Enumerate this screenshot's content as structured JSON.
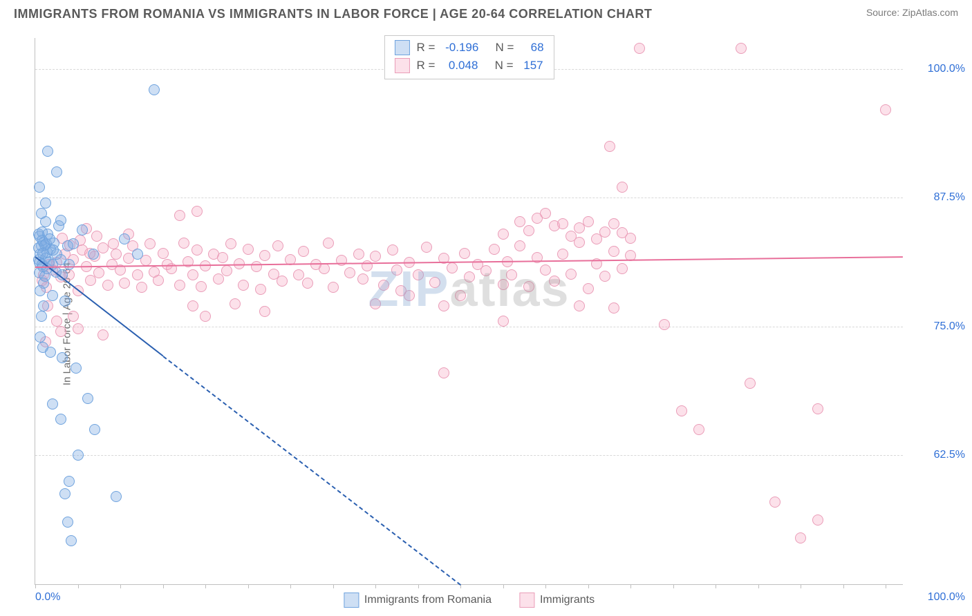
{
  "title": "IMMIGRANTS FROM ROMANIA VS IMMIGRANTS IN LABOR FORCE | AGE 20-64 CORRELATION CHART",
  "source_prefix": "Source: ",
  "source_name": "ZipAtlas.com",
  "ylabel": "In Labor Force | Age 20-64",
  "watermark_a": "ZIP",
  "watermark_b": "atlas",
  "chart": {
    "type": "scatter",
    "background_color": "#ffffff",
    "grid_color": "#d8d8d8",
    "axis_color": "#bfbfbf",
    "tick_label_color": "#2f6fd6",
    "label_color": "#6a6a6a",
    "label_fontsize": 15,
    "tick_fontsize": 16,
    "xlim": [
      0,
      102
    ],
    "ylim": [
      50,
      103
    ],
    "y_ticks": [
      62.5,
      75.0,
      87.5,
      100.0
    ],
    "y_tick_labels": [
      "62.5%",
      "75.0%",
      "87.5%",
      "100.0%"
    ],
    "x_ticks": [
      0,
      100
    ],
    "x_tick_labels": [
      "0.0%",
      "100.0%"
    ],
    "x_minor_tick_step": 5,
    "marker_radius": 8,
    "marker_border_width": 1.5,
    "series": [
      {
        "name": "Immigrants from Romania",
        "fill": "rgba(125,170,225,0.38)",
        "stroke": "#6fa3de",
        "trend_color": "#2a5fb0",
        "R": "-0.196",
        "N": "68",
        "trend": {
          "x1": 0,
          "y1": 81.8,
          "x2": 15,
          "y2": 72.2,
          "x2_dashed": 50,
          "y2_dashed": 50
        },
        "points": [
          [
            0.4,
            81.5
          ],
          [
            0.6,
            82.0
          ],
          [
            0.8,
            81.0
          ],
          [
            0.5,
            80.2
          ],
          [
            0.7,
            82.8
          ],
          [
            1.0,
            83.2
          ],
          [
            0.9,
            80.8
          ],
          [
            1.2,
            81.6
          ],
          [
            1.4,
            82.2
          ],
          [
            1.1,
            79.9
          ],
          [
            1.3,
            83.0
          ],
          [
            1.6,
            81.2
          ],
          [
            0.5,
            83.8
          ],
          [
            0.8,
            84.2
          ],
          [
            1.8,
            82.5
          ],
          [
            2.0,
            81.0
          ],
          [
            1.5,
            84.0
          ],
          [
            1.0,
            79.2
          ],
          [
            0.6,
            78.5
          ],
          [
            2.2,
            83.1
          ],
          [
            2.5,
            82.0
          ],
          [
            2.4,
            80.3
          ],
          [
            2.8,
            84.8
          ],
          [
            3.0,
            81.5
          ],
          [
            3.2,
            80.0
          ],
          [
            1.2,
            85.2
          ],
          [
            0.4,
            84.0
          ],
          [
            1.0,
            77.0
          ],
          [
            2.0,
            78.0
          ],
          [
            0.7,
            76.0
          ],
          [
            3.8,
            82.8
          ],
          [
            4.0,
            81.0
          ],
          [
            4.5,
            83.0
          ],
          [
            3.5,
            77.5
          ],
          [
            0.5,
            88.5
          ],
          [
            0.7,
            86.0
          ],
          [
            1.2,
            87.0
          ],
          [
            3.0,
            85.3
          ],
          [
            5.5,
            84.4
          ],
          [
            6.8,
            82.0
          ],
          [
            1.5,
            92.0
          ],
          [
            2.5,
            90.0
          ],
          [
            0.6,
            74.0
          ],
          [
            0.9,
            73.0
          ],
          [
            1.8,
            72.5
          ],
          [
            3.2,
            72.0
          ],
          [
            4.8,
            71.0
          ],
          [
            10.5,
            83.5
          ],
          [
            12.0,
            82.0
          ],
          [
            14.0,
            98.0
          ],
          [
            2.0,
            67.5
          ],
          [
            3.0,
            66.0
          ],
          [
            6.2,
            68.0
          ],
          [
            7.0,
            65.0
          ],
          [
            5.0,
            62.5
          ],
          [
            4.0,
            60.0
          ],
          [
            3.5,
            58.8
          ],
          [
            9.5,
            58.5
          ],
          [
            3.8,
            56.0
          ],
          [
            4.2,
            54.2
          ],
          [
            0.4,
            82.6
          ],
          [
            0.8,
            83.4
          ],
          [
            1.1,
            82.9
          ],
          [
            1.4,
            80.6
          ],
          [
            1.7,
            83.5
          ],
          [
            2.1,
            82.4
          ],
          [
            0.5,
            81.2
          ],
          [
            0.9,
            82.1
          ]
        ]
      },
      {
        "name": "Immigrants",
        "fill": "rgba(245,170,195,0.35)",
        "stroke": "#ea9db8",
        "trend_color": "#e86f9a",
        "R": "0.048",
        "N": "157",
        "trend": {
          "x1": 0,
          "y1": 80.8,
          "x2": 102,
          "y2": 81.8
        },
        "points": [
          [
            2.0,
            80.5
          ],
          [
            2.5,
            81.2
          ],
          [
            3.0,
            79.8
          ],
          [
            3.5,
            82.0
          ],
          [
            4.0,
            80.0
          ],
          [
            4.5,
            81.5
          ],
          [
            5.0,
            78.5
          ],
          [
            5.5,
            82.4
          ],
          [
            6.0,
            80.8
          ],
          [
            6.5,
            79.5
          ],
          [
            7.0,
            81.8
          ],
          [
            7.5,
            80.2
          ],
          [
            8.0,
            82.6
          ],
          [
            8.5,
            79.0
          ],
          [
            9.0,
            81.0
          ],
          [
            9.5,
            82.0
          ],
          [
            10.0,
            80.5
          ],
          [
            10.5,
            79.2
          ],
          [
            11.0,
            81.6
          ],
          [
            11.5,
            82.8
          ],
          [
            12.0,
            80.0
          ],
          [
            12.5,
            78.8
          ],
          [
            13.0,
            81.4
          ],
          [
            13.5,
            83.0
          ],
          [
            14.0,
            80.3
          ],
          [
            14.5,
            79.5
          ],
          [
            15.0,
            82.1
          ],
          [
            15.5,
            81.0
          ],
          [
            16.0,
            80.6
          ],
          [
            17.0,
            79.0
          ],
          [
            17.5,
            83.1
          ],
          [
            18.0,
            81.3
          ],
          [
            18.5,
            80.0
          ],
          [
            19.0,
            82.4
          ],
          [
            19.5,
            78.9
          ],
          [
            20.0,
            80.9
          ],
          [
            21.0,
            82.0
          ],
          [
            21.5,
            79.6
          ],
          [
            22.0,
            81.7
          ],
          [
            22.5,
            80.4
          ],
          [
            23.0,
            83.0
          ],
          [
            24.0,
            81.1
          ],
          [
            24.5,
            79.0
          ],
          [
            25.0,
            82.5
          ],
          [
            26.0,
            80.8
          ],
          [
            26.5,
            78.6
          ],
          [
            27.0,
            81.9
          ],
          [
            28.0,
            80.1
          ],
          [
            28.5,
            82.8
          ],
          [
            29.0,
            79.4
          ],
          [
            30.0,
            81.5
          ],
          [
            31.0,
            80.0
          ],
          [
            31.5,
            82.3
          ],
          [
            32.0,
            79.2
          ],
          [
            33.0,
            81.0
          ],
          [
            34.0,
            80.6
          ],
          [
            34.5,
            83.1
          ],
          [
            35.0,
            78.8
          ],
          [
            36.0,
            81.4
          ],
          [
            37.0,
            80.2
          ],
          [
            38.0,
            82.0
          ],
          [
            38.5,
            79.6
          ],
          [
            39.0,
            80.9
          ],
          [
            40.0,
            81.8
          ],
          [
            41.0,
            79.0
          ],
          [
            42.0,
            82.4
          ],
          [
            42.5,
            80.5
          ],
          [
            43.0,
            78.5
          ],
          [
            44.0,
            81.2
          ],
          [
            45.0,
            80.0
          ],
          [
            46.0,
            82.7
          ],
          [
            47.0,
            79.3
          ],
          [
            48.0,
            81.6
          ],
          [
            49.0,
            80.7
          ],
          [
            50.0,
            78.0
          ],
          [
            50.5,
            82.1
          ],
          [
            51.0,
            79.8
          ],
          [
            52.0,
            81.0
          ],
          [
            53.0,
            80.4
          ],
          [
            54.0,
            82.5
          ],
          [
            55.0,
            79.1
          ],
          [
            55.5,
            81.3
          ],
          [
            56.0,
            80.0
          ],
          [
            57.0,
            82.8
          ],
          [
            58.0,
            78.9
          ],
          [
            59.0,
            81.7
          ],
          [
            60.0,
            80.5
          ],
          [
            61.0,
            79.4
          ],
          [
            62.0,
            82.0
          ],
          [
            63.0,
            80.1
          ],
          [
            64.0,
            83.2
          ],
          [
            65.0,
            78.7
          ],
          [
            66.0,
            81.1
          ],
          [
            67.0,
            79.9
          ],
          [
            68.0,
            82.3
          ],
          [
            69.0,
            80.6
          ],
          [
            70.0,
            81.9
          ],
          [
            1.5,
            77.0
          ],
          [
            2.5,
            75.5
          ],
          [
            3.0,
            74.5
          ],
          [
            4.5,
            76.0
          ],
          [
            1.2,
            73.5
          ],
          [
            6.0,
            84.5
          ],
          [
            11.0,
            84.0
          ],
          [
            17.0,
            85.8
          ],
          [
            19.0,
            86.2
          ],
          [
            55.0,
            84.0
          ],
          [
            57.0,
            85.2
          ],
          [
            58.0,
            84.3
          ],
          [
            59.0,
            85.5
          ],
          [
            60.0,
            86.0
          ],
          [
            61.0,
            84.8
          ],
          [
            62.0,
            85.0
          ],
          [
            63.0,
            83.8
          ],
          [
            64.0,
            84.6
          ],
          [
            65.0,
            85.2
          ],
          [
            66.0,
            83.5
          ],
          [
            67.0,
            84.2
          ],
          [
            68.0,
            85.0
          ],
          [
            69.0,
            84.1
          ],
          [
            70.0,
            83.6
          ],
          [
            48.0,
            77.0
          ],
          [
            48.0,
            70.5
          ],
          [
            64.0,
            77.0
          ],
          [
            68.0,
            76.8
          ],
          [
            74.0,
            75.2
          ],
          [
            69.0,
            88.5
          ],
          [
            71.0,
            102.0
          ],
          [
            83.0,
            102.0
          ],
          [
            67.5,
            92.5
          ],
          [
            76.0,
            66.8
          ],
          [
            78.0,
            65.0
          ],
          [
            84.0,
            69.5
          ],
          [
            92.0,
            67.0
          ],
          [
            87.0,
            58.0
          ],
          [
            92.0,
            56.2
          ],
          [
            90.0,
            54.5
          ],
          [
            100.0,
            96.0
          ],
          [
            23.5,
            77.2
          ],
          [
            27.0,
            76.5
          ],
          [
            5.0,
            74.8
          ],
          [
            8.0,
            74.2
          ],
          [
            0.8,
            79.5
          ],
          [
            1.0,
            80.0
          ],
          [
            1.3,
            78.8
          ],
          [
            1.6,
            81.0
          ],
          [
            18.5,
            77.0
          ],
          [
            40.0,
            77.2
          ],
          [
            44.0,
            78.0
          ],
          [
            20.0,
            76.0
          ],
          [
            55.0,
            75.5
          ],
          [
            3.2,
            83.6
          ],
          [
            4.1,
            82.9
          ],
          [
            5.3,
            83.4
          ],
          [
            6.4,
            82.1
          ],
          [
            7.2,
            83.8
          ],
          [
            9.2,
            83.0
          ]
        ]
      }
    ],
    "legend_bottom": [
      {
        "label": "Immigrants from Romania",
        "fill": "rgba(125,170,225,0.38)",
        "stroke": "#6fa3de"
      },
      {
        "label": "Immigrants",
        "fill": "rgba(245,170,195,0.35)",
        "stroke": "#ea9db8"
      }
    ]
  }
}
